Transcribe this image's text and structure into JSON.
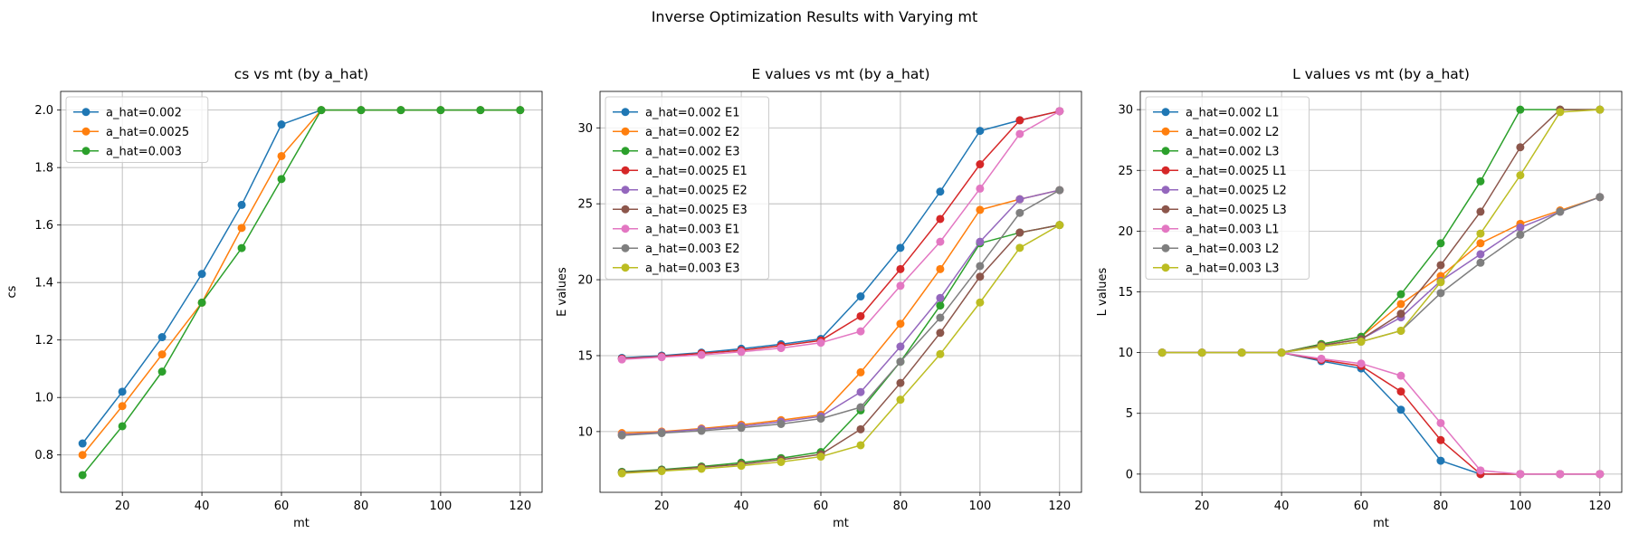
{
  "figure": {
    "title": "Inverse Optimization Results with Varying mt"
  },
  "chart_data": [
    {
      "type": "line",
      "title": "cs vs mt (by a_hat)",
      "xlabel": "mt",
      "ylabel": "cs",
      "x": [
        10,
        20,
        30,
        40,
        50,
        60,
        70,
        80,
        90,
        100,
        110,
        120
      ],
      "xlim": [
        4.5,
        125.5
      ],
      "ylim": [
        0.67,
        2.065
      ],
      "xticks": [
        20,
        40,
        60,
        80,
        100,
        120
      ],
      "yticks": [
        0.8,
        1.0,
        1.2,
        1.4,
        1.6,
        1.8,
        2.0
      ],
      "ytick_decimals": 1,
      "grid": true,
      "legend_position": "upper-left",
      "series": [
        {
          "name": "a_hat=0.002",
          "color": "#1f77b4",
          "values": [
            0.84,
            1.02,
            1.21,
            1.43,
            1.67,
            1.95,
            2.0,
            2.0,
            2.0,
            2.0,
            2.0,
            2.0
          ]
        },
        {
          "name": "a_hat=0.0025",
          "color": "#ff7f0e",
          "values": [
            0.8,
            0.97,
            1.15,
            1.33,
            1.59,
            1.84,
            2.0,
            2.0,
            2.0,
            2.0,
            2.0,
            2.0
          ]
        },
        {
          "name": "a_hat=0.003",
          "color": "#2ca02c",
          "values": [
            0.73,
            0.9,
            1.09,
            1.33,
            1.52,
            1.76,
            2.0,
            2.0,
            2.0,
            2.0,
            2.0,
            2.0
          ]
        }
      ]
    },
    {
      "type": "line",
      "title": "E values vs mt (by a_hat)",
      "xlabel": "mt",
      "ylabel": "E values",
      "x": [
        10,
        20,
        30,
        40,
        50,
        60,
        70,
        80,
        90,
        100,
        110,
        120
      ],
      "xlim": [
        4.5,
        125.5
      ],
      "ylim": [
        6.0,
        32.4
      ],
      "xticks": [
        20,
        40,
        60,
        80,
        100,
        120
      ],
      "yticks": [
        10,
        15,
        20,
        25,
        30
      ],
      "ytick_decimals": 0,
      "grid": true,
      "legend_position": "upper-left",
      "series": [
        {
          "name": "a_hat=0.002 E1",
          "color": "#1f77b4",
          "values": [
            14.85,
            15.0,
            15.2,
            15.45,
            15.75,
            16.1,
            18.9,
            22.1,
            25.8,
            29.8,
            30.5,
            31.1
          ]
        },
        {
          "name": "a_hat=0.002 E2",
          "color": "#ff7f0e",
          "values": [
            9.9,
            10.0,
            10.2,
            10.45,
            10.75,
            11.1,
            13.9,
            17.1,
            20.7,
            24.6,
            25.3,
            25.9
          ]
        },
        {
          "name": "a_hat=0.002 E3",
          "color": "#2ca02c",
          "values": [
            7.35,
            7.5,
            7.7,
            7.95,
            8.25,
            8.65,
            11.4,
            14.6,
            18.3,
            22.4,
            23.1,
            23.6
          ]
        },
        {
          "name": "a_hat=0.0025 E1",
          "color": "#d62728",
          "values": [
            14.8,
            14.95,
            15.15,
            15.35,
            15.65,
            16.0,
            17.6,
            20.7,
            24.0,
            27.6,
            30.5,
            31.1
          ]
        },
        {
          "name": "a_hat=0.0025 E2",
          "color": "#9467bd",
          "values": [
            9.8,
            9.95,
            10.15,
            10.35,
            10.65,
            11.0,
            12.6,
            15.6,
            18.8,
            22.5,
            25.3,
            25.9
          ]
        },
        {
          "name": "a_hat=0.0025 E3",
          "color": "#8c564b",
          "values": [
            7.3,
            7.45,
            7.65,
            7.85,
            8.15,
            8.5,
            10.15,
            13.2,
            16.5,
            20.2,
            23.1,
            23.6
          ]
        },
        {
          "name": "a_hat=0.003 E1",
          "color": "#e377c2",
          "values": [
            14.75,
            14.9,
            15.05,
            15.25,
            15.5,
            15.85,
            16.6,
            19.6,
            22.5,
            26.0,
            29.6,
            31.1
          ]
        },
        {
          "name": "a_hat=0.003 E2",
          "color": "#7f7f7f",
          "values": [
            9.75,
            9.9,
            10.05,
            10.25,
            10.5,
            10.85,
            11.6,
            14.6,
            17.5,
            20.9,
            24.4,
            25.9
          ]
        },
        {
          "name": "a_hat=0.003 E3",
          "color": "#bcbd22",
          "values": [
            7.25,
            7.4,
            7.55,
            7.75,
            8.0,
            8.35,
            9.1,
            12.1,
            15.1,
            18.5,
            22.1,
            23.6
          ]
        }
      ]
    },
    {
      "type": "line",
      "title": "L values vs mt (by a_hat)",
      "xlabel": "mt",
      "ylabel": "L values",
      "x": [
        10,
        20,
        30,
        40,
        50,
        60,
        70,
        80,
        90,
        100,
        110,
        120
      ],
      "xlim": [
        4.5,
        125.5
      ],
      "ylim": [
        -1.5,
        31.5
      ],
      "xticks": [
        20,
        40,
        60,
        80,
        100,
        120
      ],
      "yticks": [
        0,
        5,
        10,
        15,
        20,
        25,
        30
      ],
      "ytick_decimals": 0,
      "grid": true,
      "legend_position": "upper-left",
      "series": [
        {
          "name": "a_hat=0.002 L1",
          "color": "#1f77b4",
          "values": [
            10.0,
            10.0,
            10.0,
            10.0,
            9.3,
            8.7,
            5.3,
            1.1,
            0.0,
            0.0,
            0.0,
            0.0
          ]
        },
        {
          "name": "a_hat=0.002 L2",
          "color": "#ff7f0e",
          "values": [
            10.0,
            10.0,
            10.0,
            10.0,
            10.7,
            11.3,
            14.0,
            16.3,
            19.0,
            20.6,
            21.7,
            22.8
          ]
        },
        {
          "name": "a_hat=0.002 L3",
          "color": "#2ca02c",
          "values": [
            10.0,
            10.0,
            10.0,
            10.0,
            10.7,
            11.3,
            14.8,
            19.0,
            24.1,
            30.0,
            30.0,
            30.0
          ]
        },
        {
          "name": "a_hat=0.0025 L1",
          "color": "#d62728",
          "values": [
            10.0,
            10.0,
            10.0,
            10.0,
            9.4,
            8.9,
            6.8,
            2.8,
            0.0,
            0.0,
            0.0,
            0.0
          ]
        },
        {
          "name": "a_hat=0.0025 L2",
          "color": "#9467bd",
          "values": [
            10.0,
            10.0,
            10.0,
            10.0,
            10.6,
            11.1,
            12.9,
            15.9,
            18.1,
            20.3,
            21.6,
            22.8
          ]
        },
        {
          "name": "a_hat=0.0025 L3",
          "color": "#8c564b",
          "values": [
            10.0,
            10.0,
            10.0,
            10.0,
            10.6,
            11.1,
            13.2,
            17.2,
            21.6,
            26.9,
            30.0,
            30.0
          ]
        },
        {
          "name": "a_hat=0.003 L1",
          "color": "#e377c2",
          "values": [
            10.0,
            10.0,
            10.0,
            10.0,
            9.5,
            9.1,
            8.1,
            4.2,
            0.3,
            0.0,
            0.0,
            0.0
          ]
        },
        {
          "name": "a_hat=0.003 L2",
          "color": "#7f7f7f",
          "values": [
            10.0,
            10.0,
            10.0,
            10.0,
            10.5,
            10.9,
            11.8,
            14.9,
            17.4,
            19.7,
            21.6,
            22.8
          ]
        },
        {
          "name": "a_hat=0.003 L3",
          "color": "#bcbd22",
          "values": [
            10.0,
            10.0,
            10.0,
            10.0,
            10.5,
            10.9,
            11.8,
            15.8,
            19.8,
            24.6,
            29.8,
            30.0
          ]
        }
      ]
    }
  ]
}
